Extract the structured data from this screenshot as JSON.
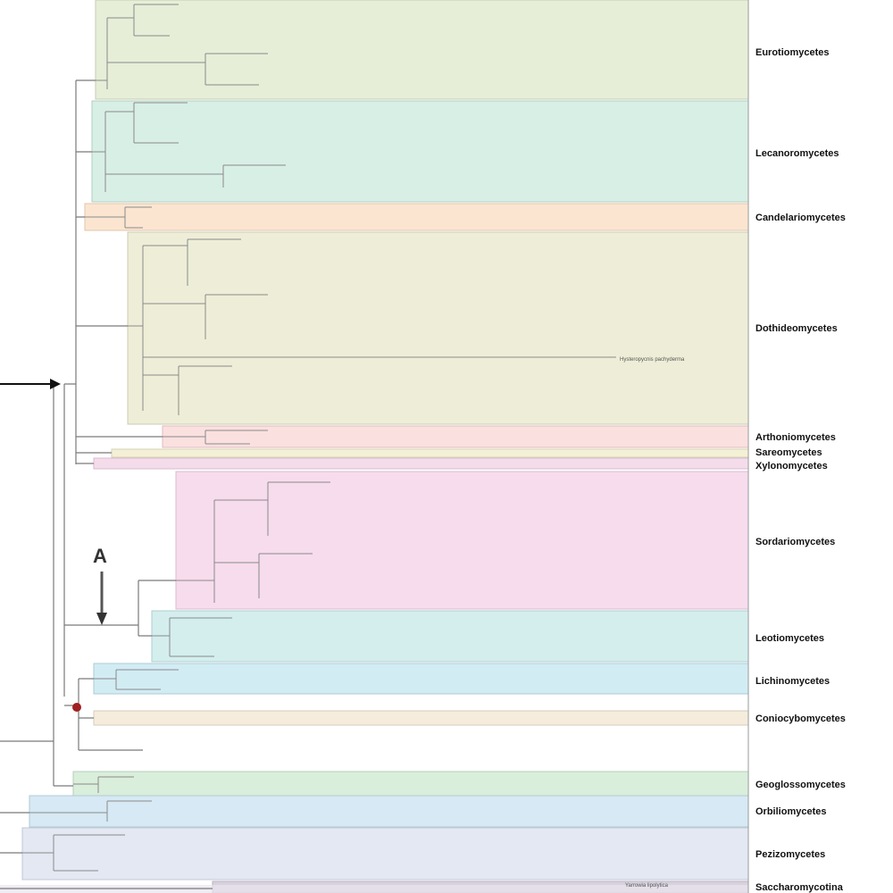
{
  "clades": [
    {
      "id": "eurotiomycetes",
      "label": "Eurotiomycetes",
      "color": "#e6eed8"
    },
    {
      "id": "lecanoromycetes",
      "label": "Lecanoromycetes",
      "color": "#d8efe6"
    },
    {
      "id": "candelariomycetes",
      "label": "Candelariomycetes",
      "color": "#fbe5d0"
    },
    {
      "id": "dothideomycetes",
      "label": "Dothideomycetes",
      "color": "#eeeed8"
    },
    {
      "id": "arthoniomycetes",
      "label": "Arthoniomycetes",
      "color": "#fbe0e0"
    },
    {
      "id": "sareomycetes",
      "label": "Sareomycetes",
      "color": "#f4f0d6"
    },
    {
      "id": "xylonomycetes",
      "label": "Xylonomycetes",
      "color": "#f5dceb"
    },
    {
      "id": "sordariomycetes",
      "label": "Sordariomycetes",
      "color": "#f7dced"
    },
    {
      "id": "leotiomycetes",
      "label": "Leotiomycetes",
      "color": "#d4eeee"
    },
    {
      "id": "lichinomycetes",
      "label": "Lichinomycetes",
      "color": "#d2ecf4"
    },
    {
      "id": "coniocybomycetes",
      "label": "Coniocybomycetes",
      "color": "#f5ecdc"
    },
    {
      "id": "geoglossomycetes",
      "label": "Geoglossomycetes",
      "color": "#d9eedb"
    },
    {
      "id": "orbiliomycetes",
      "label": "Orbiliomycetes",
      "color": "#d6e9f4"
    },
    {
      "id": "pezizomycetes",
      "label": "Pezizomycetes",
      "color": "#e3e8f2"
    },
    {
      "id": "saccharomycotina",
      "label": "Saccharomycotina",
      "color": "#e9e4ee"
    }
  ],
  "tip_labels": {
    "hysteropycnis": "Hysteropycnis pachyderma",
    "outgroup": "Yarrowia lipolytica"
  },
  "markers": {
    "a_label": "A"
  }
}
